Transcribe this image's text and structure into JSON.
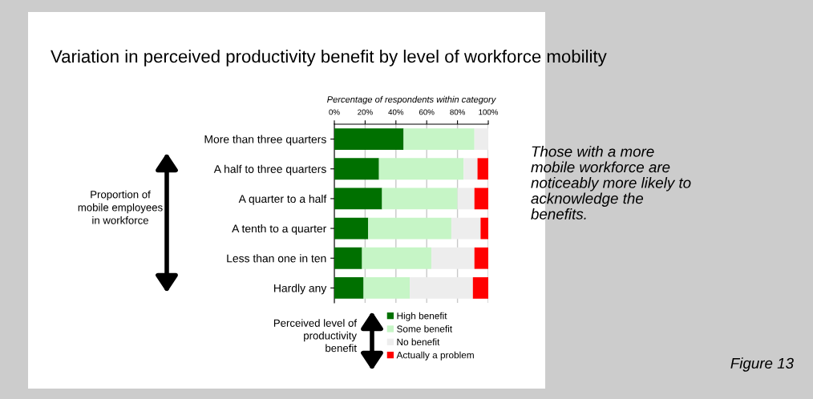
{
  "chart_data": {
    "type": "bar",
    "orientation": "horizontal",
    "stacked": true,
    "title": "Variation in perceived productivity benefit by level of workforce mobility",
    "xlabel": "Percentage of respondents within category",
    "ylabel": "Proportion of mobile employees in workforce",
    "legend_title": "Perceived level of productivity benefit",
    "categories": [
      "More than three quarters",
      "A half to three quarters",
      "A quarter to a half",
      "A tenth to a quarter",
      "Less than one in ten",
      "Hardly any"
    ],
    "series": [
      {
        "name": "High benefit",
        "color": "#007000",
        "values": [
          45,
          29,
          31,
          22,
          18,
          19
        ]
      },
      {
        "name": "Some benefit",
        "color": "#c6f5c6",
        "values": [
          46,
          55,
          49,
          54,
          45,
          30
        ]
      },
      {
        "name": "No benefit",
        "color": "#ededed",
        "values": [
          9,
          9,
          11,
          19,
          28,
          41
        ]
      },
      {
        "name": "Actually a problem",
        "color": "#ff0000",
        "values": [
          0,
          7,
          9,
          5,
          9,
          10
        ]
      }
    ],
    "xlim": [
      0,
      100
    ],
    "xticks": [
      {
        "value": 0,
        "label": "0%"
      },
      {
        "value": 20,
        "label": "20%"
      },
      {
        "value": 40,
        "label": "40%"
      },
      {
        "value": 60,
        "label": "60%"
      },
      {
        "value": 80,
        "label": "80%"
      },
      {
        "value": 100,
        "label": "100%"
      }
    ],
    "grid": "x",
    "legend": "bottom",
    "annotations": [
      "Those with a more mobile workforce are noticeably more likely to acknowledge the benefits.",
      "Figure 13"
    ]
  }
}
